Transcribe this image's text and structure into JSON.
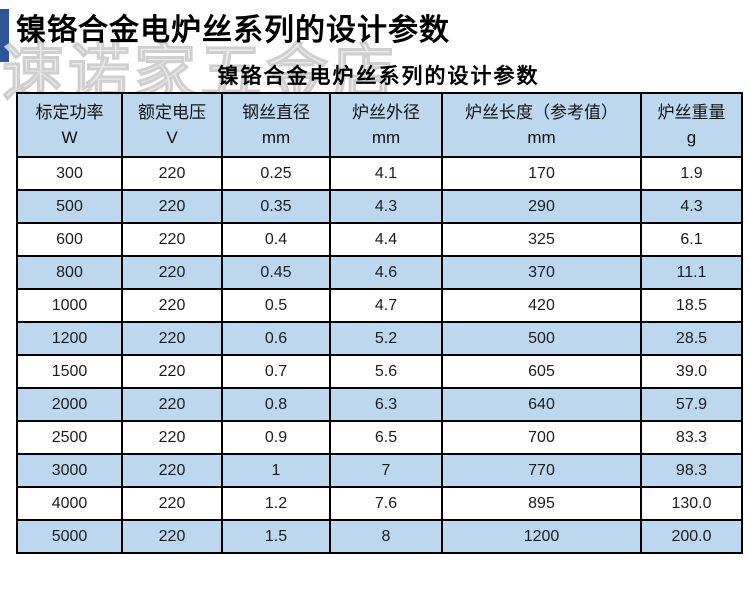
{
  "page_title": "镍铬合金电炉丝系列的设计参数",
  "table_title": "镍铬合金电炉丝系列的设计参数",
  "watermark_text": "速诺家五金店",
  "colors": {
    "accent_bar": "#2F5597",
    "header_background": "#BDD7EE",
    "stripe_row_background": "#BDD7EE",
    "table_border": "#000000",
    "title_text": "#000000"
  },
  "table": {
    "columns": [
      {
        "label": "标定功率",
        "unit": "W"
      },
      {
        "label": "额定电压",
        "unit": "V"
      },
      {
        "label": "钢丝直径",
        "unit": "mm"
      },
      {
        "label": "炉丝外径",
        "unit": "mm"
      },
      {
        "label": "炉丝长度（参考值）",
        "unit": "mm"
      },
      {
        "label": "炉丝重量",
        "unit": "g"
      }
    ],
    "rows": [
      [
        "300",
        "220",
        "0.25",
        "4.1",
        "170",
        "1.9"
      ],
      [
        "500",
        "220",
        "0.35",
        "4.3",
        "290",
        "4.3"
      ],
      [
        "600",
        "220",
        "0.4",
        "4.4",
        "325",
        "6.1"
      ],
      [
        "800",
        "220",
        "0.45",
        "4.6",
        "370",
        "11.1"
      ],
      [
        "1000",
        "220",
        "0.5",
        "4.7",
        "420",
        "18.5"
      ],
      [
        "1200",
        "220",
        "0.6",
        "5.2",
        "500",
        "28.5"
      ],
      [
        "1500",
        "220",
        "0.7",
        "5.6",
        "605",
        "39.0"
      ],
      [
        "2000",
        "220",
        "0.8",
        "6.3",
        "640",
        "57.9"
      ],
      [
        "2500",
        "220",
        "0.9",
        "6.5",
        "700",
        "83.3"
      ],
      [
        "3000",
        "220",
        "1",
        "7",
        "770",
        "98.3"
      ],
      [
        "4000",
        "220",
        "1.2",
        "7.6",
        "895",
        "130.0"
      ],
      [
        "5000",
        "220",
        "1.5",
        "8",
        "1200",
        "200.0"
      ]
    ]
  }
}
